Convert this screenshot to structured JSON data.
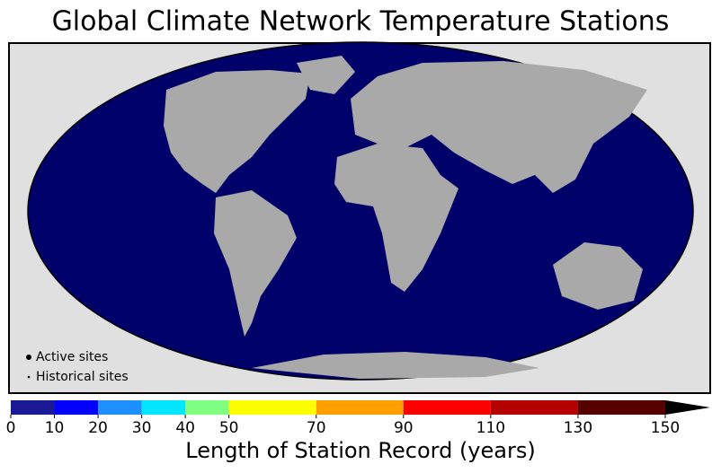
{
  "title": "Global Climate Network Temperature Stations",
  "legend": {
    "active": "Active sites",
    "historical": "Historical sites"
  },
  "colorbar": {
    "label": "Length of Station Record (years)",
    "lim": [
      0,
      150
    ],
    "ticks": [
      0,
      10,
      20,
      30,
      40,
      50,
      70,
      90,
      110,
      130,
      150
    ],
    "colors": [
      "#1a1a96",
      "#0000ff",
      "#1e8fff",
      "#00e6ff",
      "#80ff80",
      "#ffff00",
      "#ffa000",
      "#ff0000",
      "#b40000",
      "#560000"
    ],
    "extend_color": "#000000"
  }
}
